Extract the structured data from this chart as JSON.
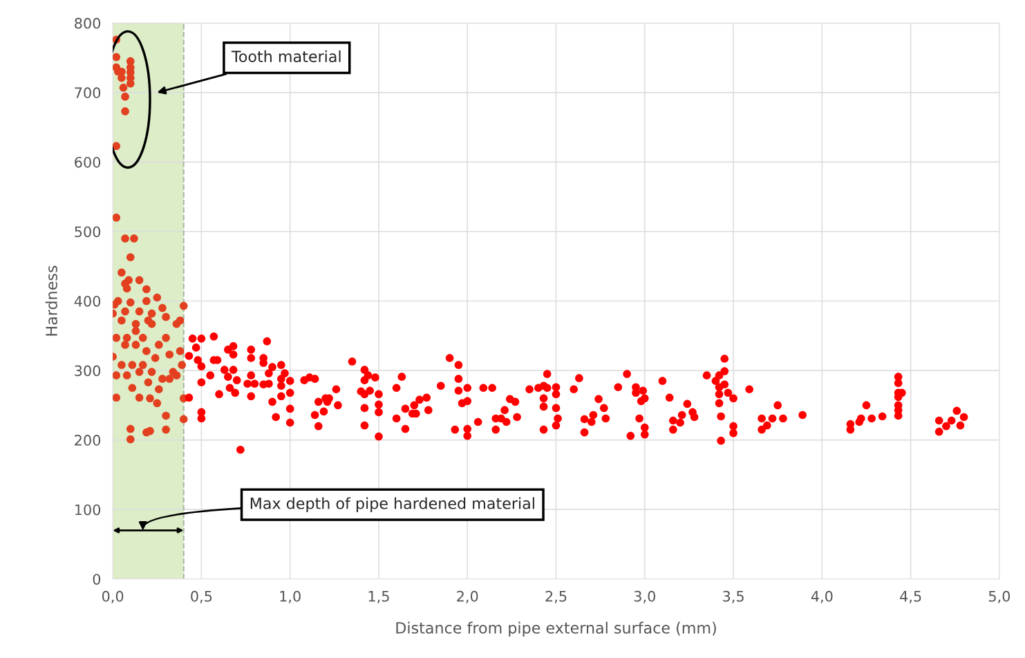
{
  "chart_data": {
    "type": "scatter",
    "xlabel": "Distance from pipe external surface (mm)",
    "ylabel": "Hardness",
    "xlim": [
      0,
      5
    ],
    "ylim": [
      0,
      800
    ],
    "xticks": [
      {
        "value": 0,
        "label": "0,0"
      },
      {
        "value": 0.5,
        "label": "0,5"
      },
      {
        "value": 1,
        "label": "1,0"
      },
      {
        "value": 1.5,
        "label": "1,5"
      },
      {
        "value": 2,
        "label": "2,0"
      },
      {
        "value": 2.5,
        "label": "2,5"
      },
      {
        "value": 3,
        "label": "3,0"
      },
      {
        "value": 3.5,
        "label": "3,5"
      },
      {
        "value": 4,
        "label": "4,0"
      },
      {
        "value": 4.5,
        "label": "4,5"
      },
      {
        "value": 5,
        "label": "5,0"
      }
    ],
    "yticks": [
      0,
      100,
      200,
      300,
      400,
      500,
      600,
      700,
      800
    ],
    "grid": true,
    "marker": "circle",
    "bands": [
      {
        "axis": "x",
        "from": 0,
        "to": 0.4,
        "color": "#dcedc8"
      }
    ],
    "ref_lines": [
      {
        "axis": "x",
        "value": 0.4,
        "color": "#a9b8a0",
        "line_style": "dashed"
      }
    ],
    "annotations": [
      "Tooth material",
      "Max depth of pipe hardened material"
    ],
    "series": [
      {
        "color": "#e2401f",
        "x": [
          0.02,
          0.02,
          0.02,
          0.03,
          0.05,
          0.1,
          0.1,
          0.1,
          0.1,
          0.1,
          0.05,
          0.06,
          0.07,
          0.07,
          0.02,
          0.02,
          0.07,
          0.12,
          0.1,
          0.05,
          0.07,
          0.09,
          0.08,
          0.15,
          0.0,
          0.01,
          0.03,
          0.1,
          0.19,
          0.25,
          0.28,
          0.4,
          0.05,
          0.02,
          0.0,
          0.02,
          0.08,
          0.11,
          0.15,
          0.21,
          0.02,
          0.1,
          0.1,
          0.19,
          0.21,
          0.3,
          0.3,
          0.4,
          0.4,
          0.13,
          0.17,
          0.22,
          0.3,
          0.36,
          0.38,
          0.2,
          0.15,
          0.07,
          0.13,
          0.19,
          0.24,
          0.32,
          0.38,
          0.17,
          0.22,
          0.28,
          0.34,
          0.39,
          0.11,
          0.05,
          0.26,
          0.3,
          0.2,
          0.26,
          0.32,
          0.36,
          0.15,
          0.25,
          0.08,
          0.13,
          0.07,
          0.19,
          0.22
        ],
        "values": [
          776,
          751,
          736,
          730,
          730,
          745,
          736,
          729,
          721,
          713,
          721,
          707,
          694,
          673,
          623,
          520,
          490,
          490,
          463,
          441,
          425,
          430,
          418,
          430,
          382,
          395,
          400,
          398,
          400,
          405,
          390,
          393,
          372,
          347,
          320,
          293,
          293,
          275,
          261,
          260,
          261,
          201,
          216,
          211,
          213,
          235,
          215,
          230,
          260,
          357,
          347,
          367,
          377,
          367,
          372,
          372,
          385,
          337,
          337,
          328,
          318,
          323,
          328,
          308,
          298,
          288,
          298,
          308,
          308,
          308,
          337,
          347,
          283,
          273,
          288,
          293,
          298,
          253,
          347,
          367,
          385,
          417,
          382
        ]
      },
      {
        "color": "#ff0000",
        "x": [
          0.45,
          0.5,
          0.57,
          0.47,
          0.43,
          0.48,
          0.5,
          0.55,
          0.5,
          0.43,
          0.6,
          0.5,
          0.5,
          0.57,
          0.59,
          0.65,
          0.68,
          0.68,
          0.63,
          0.68,
          0.65,
          0.7,
          0.66,
          0.69,
          0.76,
          0.78,
          0.8,
          0.78,
          0.78,
          0.78,
          0.87,
          0.85,
          0.85,
          0.9,
          0.88,
          0.95,
          0.97,
          0.95,
          1.0,
          0.95,
          0.85,
          0.88,
          1.0,
          0.95,
          0.9,
          1.0,
          0.92,
          1.0,
          0.72,
          1.08,
          1.11,
          1.14,
          1.26,
          1.2,
          1.22,
          1.16,
          1.21,
          1.27,
          1.14,
          1.19,
          1.16,
          1.35,
          1.42,
          1.44,
          1.48,
          1.42,
          1.4,
          1.45,
          1.42,
          1.5,
          1.5,
          1.5,
          1.42,
          1.42,
          1.5,
          1.63,
          1.6,
          1.65,
          1.7,
          1.73,
          1.77,
          1.69,
          1.71,
          1.78,
          1.6,
          1.65,
          1.85,
          1.9,
          1.95,
          1.95,
          1.95,
          2.0,
          1.97,
          2.0,
          1.93,
          2.0,
          2.0,
          2.06,
          2.09,
          2.14,
          2.16,
          2.16,
          2.19,
          2.21,
          2.22,
          2.24,
          2.27,
          2.28,
          2.35,
          2.4,
          2.43,
          2.45,
          2.45,
          2.43,
          2.43,
          2.43,
          2.5,
          2.5,
          2.5,
          2.51,
          2.5,
          2.6,
          2.63,
          2.66,
          2.66,
          2.7,
          2.71,
          2.74,
          2.77,
          2.78,
          2.85,
          2.9,
          2.95,
          2.95,
          2.99,
          2.98,
          3.0,
          2.97,
          3.0,
          3.0,
          2.92,
          3.1,
          3.14,
          3.16,
          3.16,
          3.21,
          3.2,
          3.24,
          3.27,
          3.28,
          3.35,
          3.4,
          3.42,
          3.45,
          3.45,
          3.42,
          3.45,
          3.42,
          3.47,
          3.5,
          3.42,
          3.43,
          3.5,
          3.5,
          3.43,
          3.59,
          3.75,
          3.66,
          3.72,
          3.69,
          3.66,
          3.78,
          3.89,
          4.16,
          4.16,
          4.21,
          4.22,
          4.25,
          4.28,
          4.34,
          4.43,
          4.43,
          4.43,
          4.45,
          4.43,
          4.43,
          4.43,
          4.43,
          4.66,
          4.66,
          4.7,
          4.73,
          4.76,
          4.78,
          4.8
        ],
        "values": [
          346,
          346,
          349,
          333,
          321,
          315,
          306,
          293,
          283,
          261,
          266,
          240,
          231,
          315,
          315,
          330,
          335,
          323,
          301,
          301,
          291,
          286,
          275,
          268,
          281,
          293,
          281,
          263,
          330,
          318,
          342,
          318,
          311,
          305,
          296,
          308,
          296,
          288,
          285,
          278,
          280,
          281,
          268,
          263,
          255,
          245,
          233,
          225,
          186,
          286,
          290,
          288,
          273,
          260,
          260,
          255,
          255,
          250,
          236,
          241,
          220,
          313,
          301,
          293,
          290,
          286,
          270,
          271,
          266,
          266,
          251,
          240,
          246,
          221,
          205,
          291,
          275,
          245,
          250,
          258,
          261,
          238,
          238,
          243,
          231,
          216,
          278,
          318,
          308,
          288,
          271,
          275,
          253,
          256,
          215,
          216,
          206,
          226,
          275,
          275,
          231,
          215,
          231,
          243,
          226,
          259,
          255,
          233,
          273,
          275,
          278,
          295,
          275,
          260,
          248,
          215,
          276,
          266,
          246,
          231,
          221,
          273,
          289,
          230,
          211,
          226,
          236,
          259,
          246,
          231,
          276,
          295,
          276,
          268,
          271,
          256,
          260,
          231,
          218,
          208,
          206,
          285,
          261,
          228,
          215,
          236,
          225,
          252,
          240,
          233,
          293,
          285,
          293,
          317,
          299,
          276,
          280,
          266,
          268,
          260,
          253,
          234,
          220,
          210,
          199,
          273,
          250,
          231,
          231,
          221,
          215,
          231,
          236,
          223,
          215,
          226,
          231,
          250,
          231,
          234,
          291,
          282,
          268,
          268,
          262,
          250,
          243,
          235,
          228,
          212,
          220,
          228,
          242,
          221,
          233
        ]
      }
    ]
  }
}
